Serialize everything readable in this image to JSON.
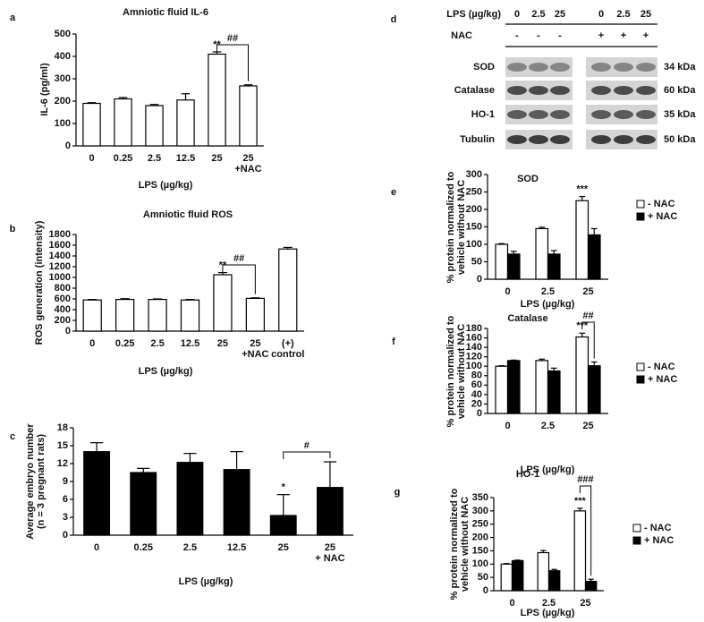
{
  "chart_data": [
    {
      "type": "bar",
      "label": "a",
      "title": "Amniotic fluid IL-6",
      "categories": [
        "0",
        "0.25",
        "2.5",
        "12.5",
        "25",
        "25\n+NAC"
      ],
      "series": [
        {
          "color": "#ffffff",
          "values": [
            190,
            210,
            180,
            205,
            410,
            268
          ],
          "errors": [
            3,
            6,
            5,
            28,
            10,
            5
          ]
        }
      ],
      "ylim": [
        0,
        500
      ],
      "yticks": [
        0,
        100,
        200,
        300,
        400,
        500
      ],
      "ylabel": "IL-6 (pg/ml)",
      "xlabel": "LPS (µg/kg)",
      "annotations": [
        "**",
        "##"
      ]
    },
    {
      "type": "bar",
      "label": "b",
      "title": "Amniotic fluid ROS",
      "categories": [
        "0",
        "0.25",
        "2.5",
        "12.5",
        "25",
        "25\n+NAC",
        "(+)\ncontrol"
      ],
      "series": [
        {
          "color": "#ffffff",
          "values": [
            580,
            590,
            590,
            580,
            1050,
            610,
            1530
          ],
          "errors": [
            10,
            15,
            10,
            10,
            40,
            10,
            30
          ]
        }
      ],
      "ylim": [
        0,
        1800
      ],
      "yticks": [
        0,
        200,
        400,
        600,
        800,
        1000,
        1200,
        1400,
        1600,
        1800
      ],
      "ylabel": "ROS generation (intensity)",
      "xlabel": "LPS (µg/kg)",
      "annotations": [
        "**",
        "##"
      ]
    },
    {
      "type": "bar",
      "label": "c",
      "categories": [
        "0",
        "0.25",
        "2.5",
        "12.5",
        "25",
        "25\n+ NAC"
      ],
      "series": [
        {
          "color": "#000000",
          "values": [
            14,
            10.5,
            12.2,
            11,
            3.3,
            8
          ],
          "errors": [
            1.5,
            0.7,
            1.5,
            3,
            3.5,
            4.3
          ]
        }
      ],
      "ylim": [
        0,
        18
      ],
      "yticks": [
        0,
        3,
        6,
        9,
        12,
        15,
        18
      ],
      "ylabel": "Average embryo number\n(n = 3 pregnant rats)",
      "xlabel": "LPS (µg/kg)",
      "annotations": [
        "*",
        "#"
      ]
    },
    {
      "type": "bar",
      "label": "e",
      "title": "SOD",
      "categories": [
        "0",
        "2.5",
        "25"
      ],
      "series": [
        {
          "name": "- NAC",
          "color": "#ffffff",
          "values": [
            100,
            145,
            225
          ],
          "errors": [
            2,
            4,
            12
          ]
        },
        {
          "name": "+ NAC",
          "color": "#000000",
          "values": [
            72,
            72,
            127
          ],
          "errors": [
            8,
            10,
            18
          ]
        }
      ],
      "ylim": [
        0,
        300
      ],
      "yticks": [
        0,
        50,
        100,
        150,
        200,
        250,
        300
      ],
      "ylabel": "% protein normalized to\nvehicle without NAC",
      "xlabel": "LPS (µg/kg)",
      "annotations": [
        "***"
      ]
    },
    {
      "type": "bar",
      "label": "f",
      "title": "Catalase",
      "categories": [
        "0",
        "2.5",
        "25"
      ],
      "series": [
        {
          "name": "- NAC",
          "color": "#ffffff",
          "values": [
            100,
            112,
            162
          ],
          "errors": [
            1,
            3,
            8
          ]
        },
        {
          "name": "+ NAC",
          "color": "#000000",
          "values": [
            112,
            90,
            101
          ],
          "errors": [
            1,
            6,
            8
          ]
        }
      ],
      "ylim": [
        0,
        180
      ],
      "yticks": [
        0,
        20,
        40,
        60,
        80,
        100,
        120,
        140,
        160,
        180
      ],
      "ylabel": "% protein normalized to\nvehicle without NAC",
      "xlabel": "LPS (µg/kg)",
      "annotations": [
        "***",
        "##"
      ]
    },
    {
      "type": "bar",
      "label": "g",
      "title": "HO-1",
      "categories": [
        "0",
        "2.5",
        "25"
      ],
      "series": [
        {
          "name": "- NAC",
          "color": "#ffffff",
          "values": [
            100,
            143,
            300
          ],
          "errors": [
            2,
            8,
            10
          ]
        },
        {
          "name": "+ NAC",
          "color": "#000000",
          "values": [
            113,
            75,
            35
          ],
          "errors": [
            2,
            5,
            8
          ]
        }
      ],
      "ylim": [
        0,
        350
      ],
      "yticks": [
        0,
        50,
        100,
        150,
        200,
        250,
        300,
        350
      ],
      "ylabel": "% protein normalized to\nvehicle without NAC",
      "xlabel": "LPS (µg/kg)",
      "annotations": [
        "***",
        "###"
      ]
    }
  ],
  "blot": {
    "label": "d",
    "lps_label": "LPS (µg/kg)",
    "lps": [
      "0",
      "2.5",
      "25",
      "0",
      "2.5",
      "25"
    ],
    "nac_label": "NAC",
    "nac": [
      "-",
      "-",
      "-",
      "+",
      "+",
      "+"
    ],
    "rows": [
      {
        "protein": "SOD",
        "size": "34 kDa"
      },
      {
        "protein": "Catalase",
        "size": "60 kDa"
      },
      {
        "protein": "HO-1",
        "size": "35 kDa"
      },
      {
        "protein": "Tubulin",
        "size": "50 kDa"
      }
    ]
  }
}
